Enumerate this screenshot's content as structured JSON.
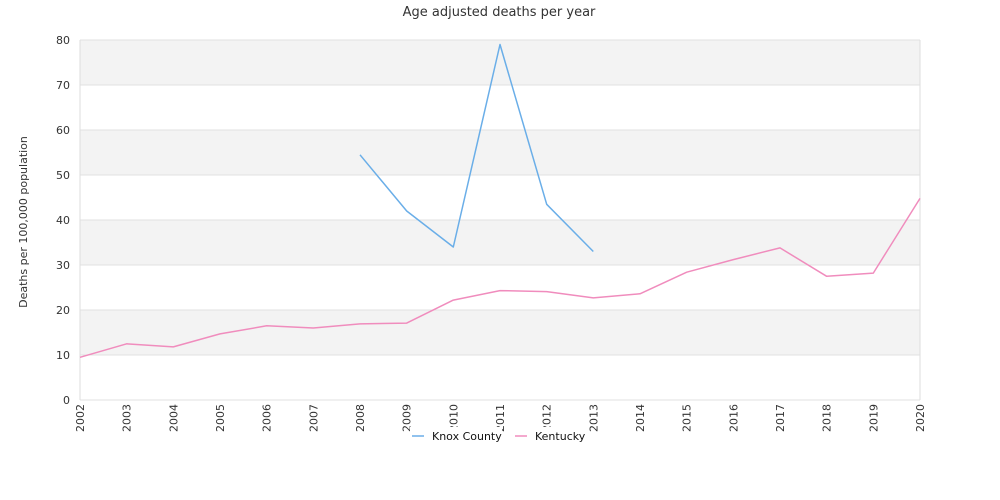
{
  "chart_data": {
    "type": "line",
    "title": "Age adjusted deaths per year",
    "xlabel": "",
    "ylabel": "Deaths per 100,000 population",
    "x": [
      "2002",
      "2003",
      "2004",
      "2005",
      "2006",
      "2007",
      "2008",
      "2009",
      "2010",
      "2011",
      "2012",
      "2013",
      "2014",
      "2015",
      "2016",
      "2017",
      "2018",
      "2019",
      "2020"
    ],
    "ylim": [
      0,
      80
    ],
    "yticks": [
      0,
      10,
      20,
      30,
      40,
      50,
      60,
      70,
      80
    ],
    "grid": "horizontal bands",
    "legend_position": "bottom-center",
    "series": [
      {
        "name": "Knox County",
        "color": "#6aaee8",
        "values": [
          null,
          null,
          null,
          null,
          null,
          null,
          54.5,
          42.0,
          34.0,
          79.0,
          43.5,
          33.0,
          null,
          null,
          null,
          null,
          null,
          null,
          null
        ]
      },
      {
        "name": "Kentucky",
        "color": "#f08cbd",
        "values": [
          9.5,
          12.5,
          11.8,
          14.7,
          16.5,
          16.0,
          16.9,
          17.1,
          22.2,
          24.3,
          24.1,
          22.7,
          23.6,
          28.4,
          31.2,
          33.8,
          27.5,
          28.2,
          44.8
        ]
      }
    ]
  }
}
